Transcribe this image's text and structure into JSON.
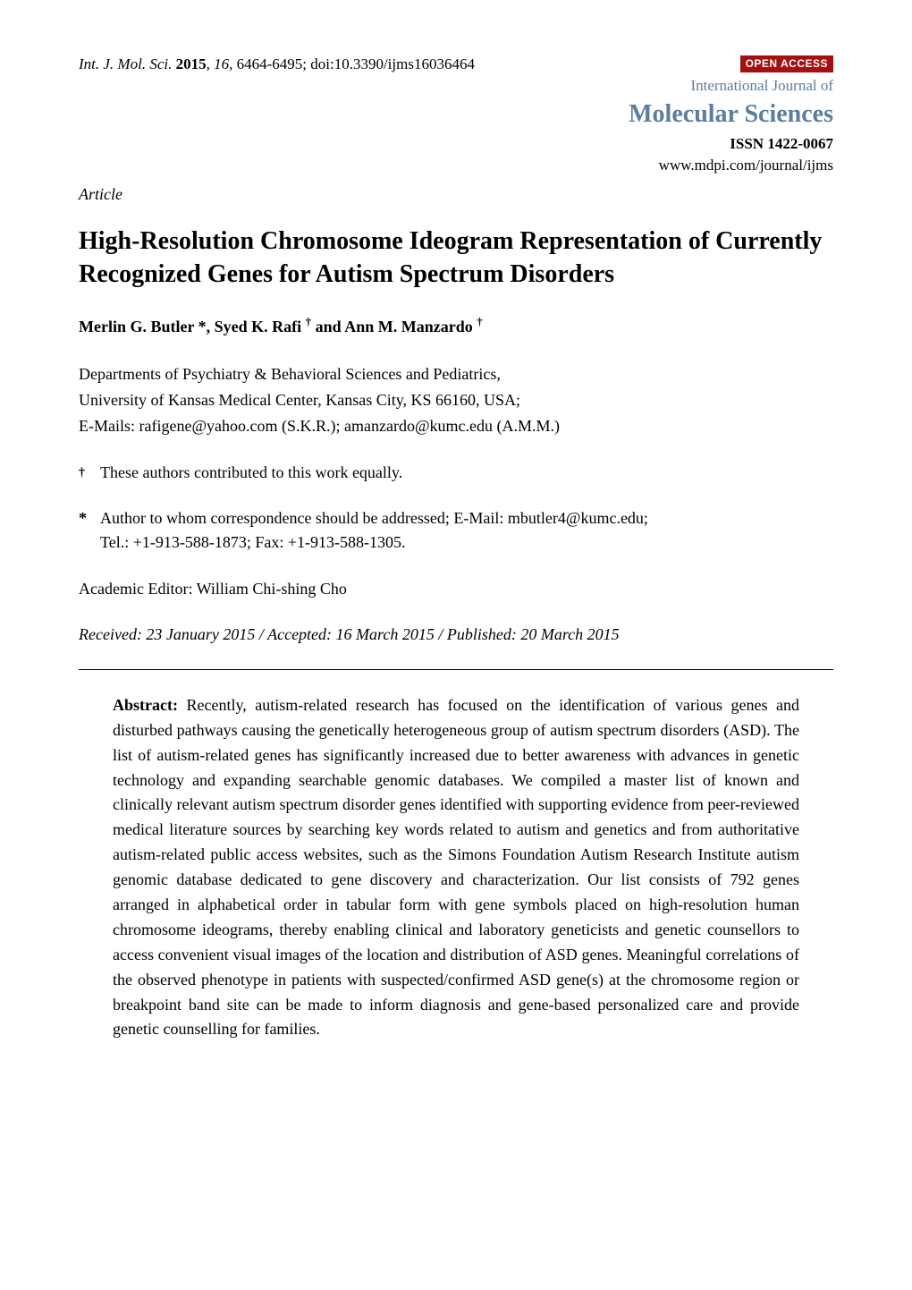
{
  "header": {
    "journal_abbrev": "Int. J. Mol. Sci.",
    "year": "2015",
    "volume": "16",
    "pages": "6464-6495",
    "doi": "doi:10.3390/ijms16036464",
    "open_access": "OPEN ACCESS",
    "journal_title_prefix": "International Journal of",
    "journal_title_main": "Molecular Sciences",
    "issn": "ISSN 1422-0067",
    "journal_url": "www.mdpi.com/journal/ijms"
  },
  "article_type": "Article",
  "title": "High-Resolution Chromosome Ideogram Representation of Currently Recognized Genes for Autism Spectrum Disorders",
  "authors_html": "Merlin G. Butler *, Syed K. Rafi † and Ann M. Manzardo †",
  "author1": "Merlin G. Butler *, ",
  "author2": "Syed K. Rafi ",
  "author2_sym": "†",
  "author_and": " and ",
  "author3": "Ann M. Manzardo ",
  "author3_sym": "†",
  "affiliation_line1": "Departments of Psychiatry & Behavioral Sciences and Pediatrics,",
  "affiliation_line2": "University of Kansas Medical Center, Kansas City, KS 66160, USA;",
  "affiliation_line3": "E-Mails: rafigene@yahoo.com (S.K.R.); amanzardo@kumc.edu (A.M.M.)",
  "footnotes": {
    "dagger_sym": "†",
    "dagger_text": "These authors contributed to this work equally.",
    "star_sym": "*",
    "star_line1": "Author to whom correspondence should be addressed; E-Mail: mbutler4@kumc.edu;",
    "star_line2": "Tel.: +1-913-588-1873; Fax: +1-913-588-1305."
  },
  "editor": "Academic Editor: William Chi-shing Cho",
  "dates": "Received: 23 January 2015 / Accepted: 16 March 2015 / Published: 20 March 2015",
  "abstract": {
    "label": "Abstract:",
    "text": " Recently, autism-related research has focused on the identification of various genes and disturbed pathways causing the genetically heterogeneous group of autism spectrum disorders (ASD). The list of autism-related genes has significantly increased due to better awareness with advances in genetic technology and expanding searchable genomic databases. We compiled a master list of known and clinically relevant autism spectrum disorder genes identified with supporting evidence from peer-reviewed medical literature sources by searching key words related to autism and genetics and from authoritative autism-related public access websites, such as the Simons Foundation Autism Research Institute autism genomic database dedicated to gene discovery and characterization. Our list consists of 792 genes arranged in alphabetical order in tabular form with gene symbols placed on high-resolution human chromosome ideograms, thereby enabling clinical and laboratory geneticists and genetic counsellors to access convenient visual images of the location and distribution of ASD genes. Meaningful correlations of the observed phenotype in patients with suspected/confirmed ASD gene(s) at the chromosome region or breakpoint band site can be made to inform diagnosis and gene-based personalized care and provide genetic counselling for families."
  },
  "colors": {
    "open_access_bg": "#a50f0f",
    "journal_brand": "#5b7da0",
    "text": "#000000",
    "bg": "#ffffff"
  },
  "typography": {
    "body_font": "Times New Roman",
    "title_fontsize_pt": 21,
    "body_fontsize_pt": 13,
    "open_access_font": "Arial"
  }
}
